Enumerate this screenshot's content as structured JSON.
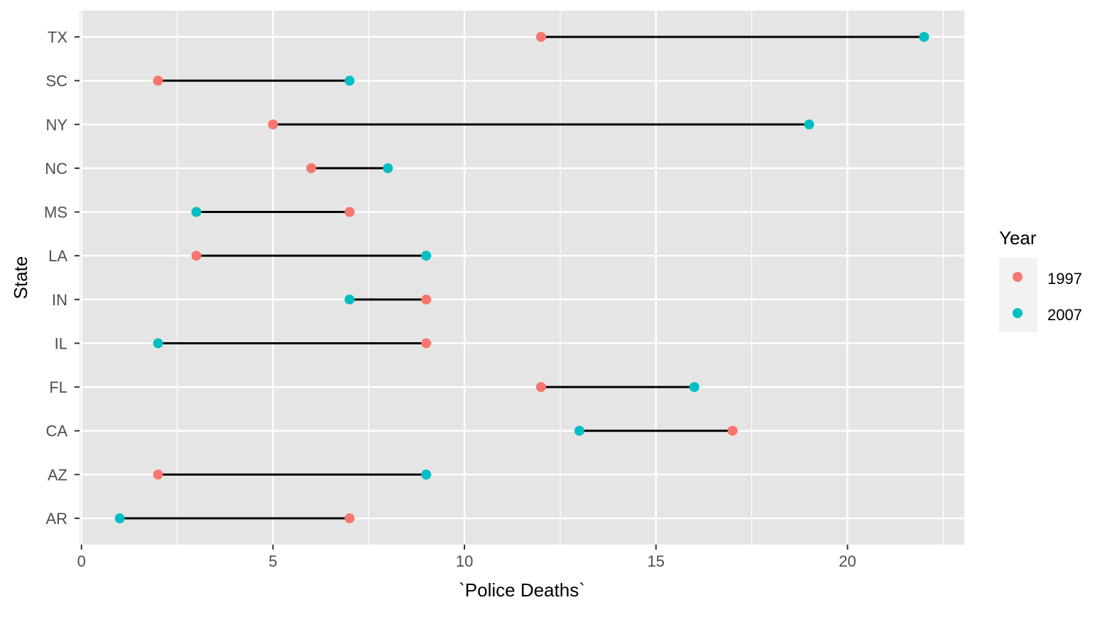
{
  "chart_data": {
    "type": "dumbbell",
    "title": "",
    "xlabel": "`Police Deaths`",
    "ylabel": "State",
    "xlim": [
      -0.05,
      23.05
    ],
    "x_ticks": [
      0,
      5,
      10,
      15,
      20
    ],
    "x_tick_labels": [
      "0",
      "5",
      "10",
      "15",
      "20"
    ],
    "grid": true,
    "categories": [
      "AR",
      "AZ",
      "CA",
      "FL",
      "IL",
      "IN",
      "LA",
      "MS",
      "NC",
      "NY",
      "SC",
      "TX"
    ],
    "legend": {
      "title": "Year",
      "position": "right",
      "entries": [
        "1997",
        "2007"
      ]
    },
    "series": [
      {
        "name": "1997",
        "color": "#F8766D",
        "values": [
          7,
          2,
          17,
          12,
          9,
          9,
          3,
          7,
          6,
          5,
          2,
          12
        ]
      },
      {
        "name": "2007",
        "color": "#00BFC4",
        "values": [
          1,
          9,
          13,
          16,
          2,
          7,
          9,
          3,
          8,
          19,
          7,
          22
        ]
      }
    ],
    "segment_color": "#000000",
    "panel_background": "#E5E5E5"
  }
}
